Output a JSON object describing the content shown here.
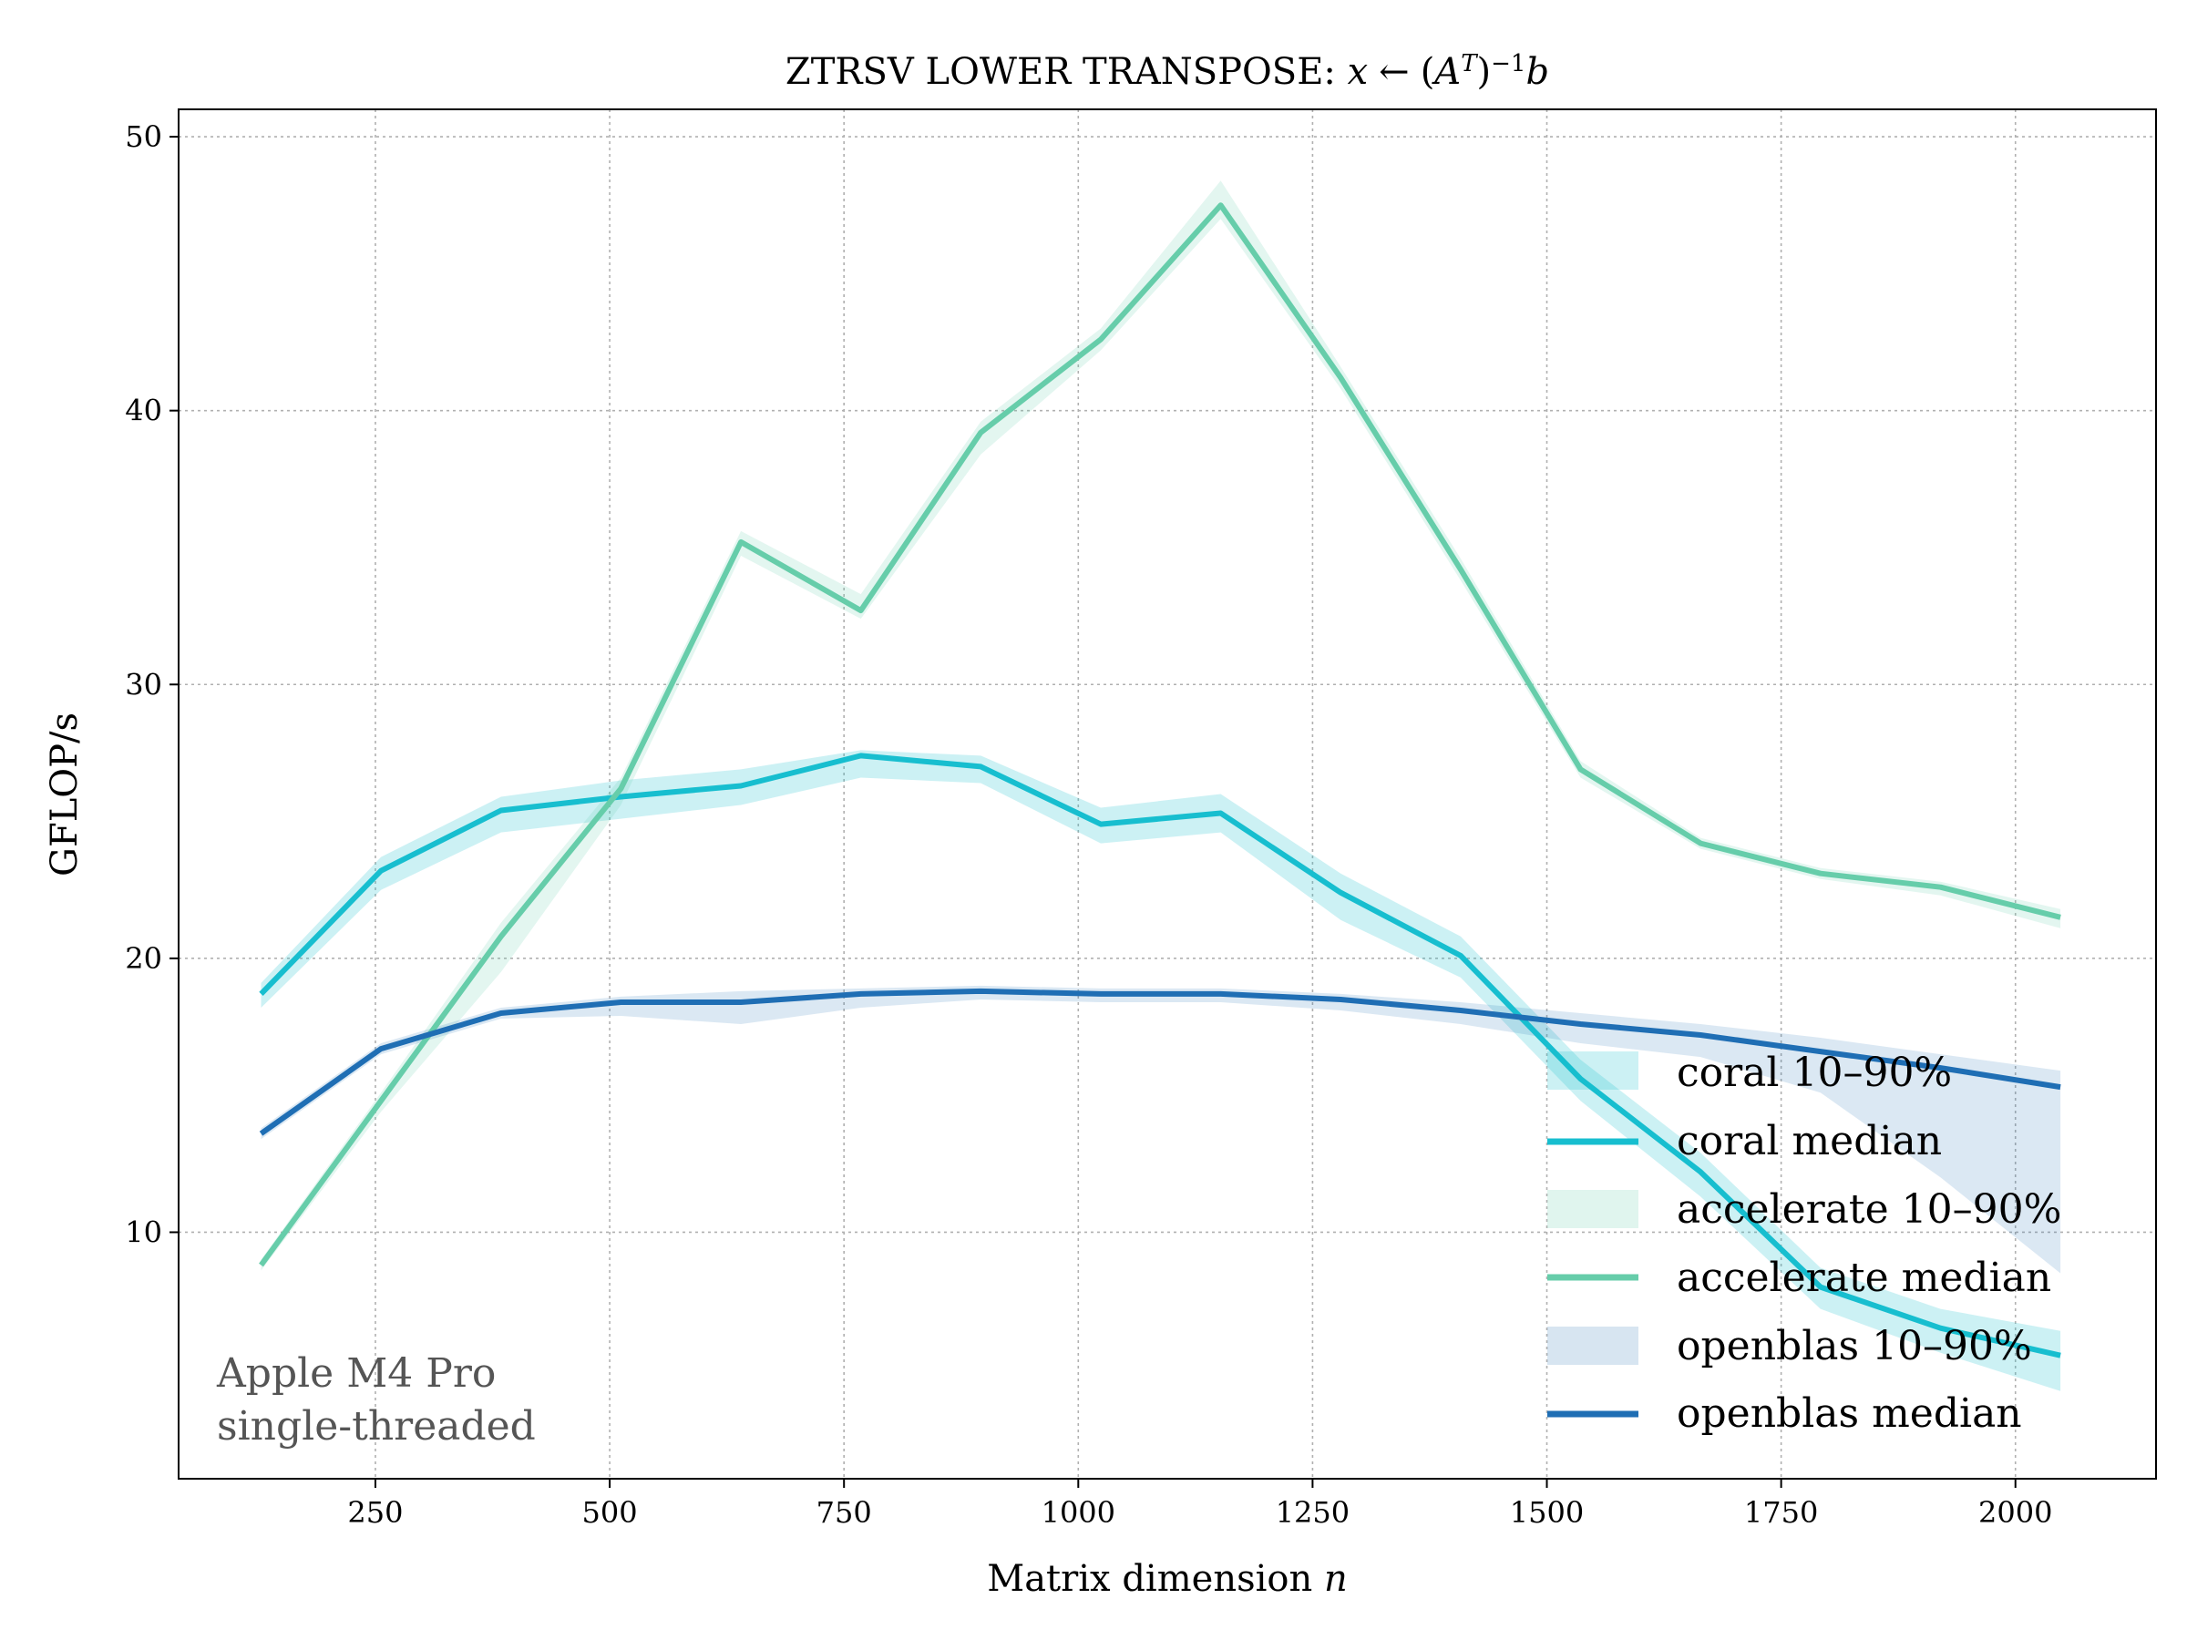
{
  "chart_data": {
    "type": "line",
    "title": "ZTRSV LOWER TRANSPOSE: x ← (Aᵀ)⁻¹b",
    "title_parts": {
      "prefix": "ZTRSV LOWER TRANSPOSE: ",
      "x": "x",
      "arrow": "←",
      "open": "(",
      "A": "A",
      "T": "T",
      "close": ")",
      "exp": "−1",
      "b": "b"
    },
    "xlabel": "Matrix dimension n",
    "xlabel_parts": {
      "text": "Matrix dimension ",
      "var": "n"
    },
    "ylabel": "GFLOP/s",
    "xlim": [
      40,
      2150
    ],
    "ylim": [
      1,
      51
    ],
    "xticks": [
      250,
      500,
      750,
      1000,
      1250,
      1500,
      1750,
      2000
    ],
    "yticks": [
      10,
      20,
      30,
      40,
      50
    ],
    "grid": true,
    "legend_position": "lower-right",
    "annotation": [
      "Apple M4 Pro",
      "single-threaded"
    ],
    "x": [
      128,
      256,
      384,
      512,
      640,
      768,
      896,
      1024,
      1152,
      1280,
      1408,
      1536,
      1664,
      1792,
      1920,
      2048
    ],
    "series": [
      {
        "name": "coral",
        "color": "#17becf",
        "median_label": "coral median",
        "band_label": "coral 10–90%",
        "median": [
          18.7,
          23.2,
          25.4,
          25.9,
          26.3,
          27.4,
          27.0,
          24.9,
          25.3,
          22.4,
          20.1,
          15.6,
          12.2,
          8.0,
          6.5,
          5.5
        ],
        "p10": [
          18.2,
          22.5,
          24.6,
          25.1,
          25.6,
          26.6,
          26.4,
          24.2,
          24.6,
          21.4,
          19.3,
          14.8,
          11.3,
          7.2,
          5.6,
          4.2
        ],
        "p90": [
          19.1,
          23.7,
          25.9,
          26.5,
          26.9,
          27.6,
          27.4,
          25.5,
          26.0,
          23.1,
          20.8,
          16.3,
          12.9,
          8.7,
          7.2,
          6.4
        ]
      },
      {
        "name": "accelerate",
        "color": "#66cdaa",
        "median_label": "accelerate median",
        "band_label": "accelerate 10–90%",
        "median": [
          8.8,
          14.8,
          20.8,
          26.2,
          35.2,
          32.7,
          39.2,
          42.6,
          47.5,
          41.2,
          34.2,
          26.9,
          24.2,
          23.1,
          22.6,
          21.5
        ],
        "p10": [
          8.6,
          14.4,
          19.5,
          25.6,
          34.7,
          32.4,
          38.4,
          42.2,
          47.0,
          40.8,
          33.8,
          26.6,
          24.0,
          22.9,
          22.3,
          21.1
        ],
        "p90": [
          9.0,
          15.1,
          21.3,
          26.6,
          35.6,
          33.3,
          39.6,
          43.0,
          48.4,
          41.6,
          34.6,
          27.2,
          24.4,
          23.3,
          22.8,
          21.8
        ]
      },
      {
        "name": "openblas",
        "color": "#1f6eb4",
        "median_label": "openblas median",
        "band_label": "openblas 10–90%",
        "median": [
          13.6,
          16.7,
          18.0,
          18.4,
          18.4,
          18.7,
          18.8,
          18.7,
          18.7,
          18.5,
          18.1,
          17.6,
          17.2,
          16.6,
          16.0,
          15.3
        ],
        "p10": [
          13.4,
          16.5,
          17.8,
          17.9,
          17.6,
          18.2,
          18.5,
          18.4,
          18.4,
          18.1,
          17.6,
          16.9,
          16.4,
          15.1,
          12.0,
          8.5
        ],
        "p90": [
          13.8,
          16.9,
          18.2,
          18.6,
          18.8,
          18.9,
          19.0,
          18.9,
          18.9,
          18.7,
          18.4,
          18.0,
          17.6,
          17.1,
          16.5,
          15.9
        ]
      }
    ]
  }
}
